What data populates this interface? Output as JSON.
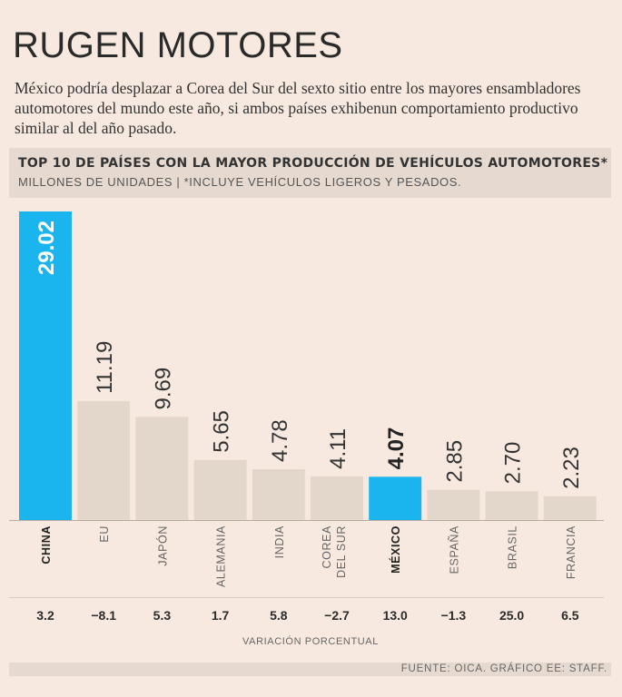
{
  "header": {
    "title": "RUGEN MOTORES",
    "subtitle": "México podría desplazar a Corea del Sur del sexto sitio entre los mayores ensambladores automotores del mundo este año, si ambos países exhibenun comportamiento productivo similar al del año pasado."
  },
  "chart_data": {
    "type": "bar",
    "title": "TOP 10 DE PAÍSES CON LA MAYOR PRODUCCIÓN DE VEHÍCULOS AUTOMOTORES*",
    "subtitle": "MILLONES DE UNIDADES | *INCLUYE VEHÍCULOS LIGEROS Y PESADOS.",
    "categories": [
      "CHINA",
      "EU",
      "JAPÓN",
      "ALEMANIA",
      "INDIA",
      "COREA DEL SUR",
      "MÉXICO",
      "ESPAÑA",
      "BRASIL",
      "FRANCIA"
    ],
    "values": [
      29.02,
      11.19,
      9.69,
      5.65,
      4.78,
      4.11,
      4.07,
      2.85,
      2.7,
      2.23
    ],
    "value_labels": [
      "29.02",
      "11.19",
      "9.69",
      "5.65",
      "4.78",
      "4.11",
      "4.07",
      "2.85",
      "2.70",
      "2.23"
    ],
    "category_labels": [
      [
        "CHINA"
      ],
      [
        "EU"
      ],
      [
        "JAPÓN"
      ],
      [
        "ALEMANIA"
      ],
      [
        "INDIA"
      ],
      [
        "COREA",
        "DEL SUR"
      ],
      [
        "MÉXICO"
      ],
      [
        "ESPAÑA"
      ],
      [
        "BRASIL"
      ],
      [
        "FRANCIA"
      ]
    ],
    "highlight": [
      "CHINA",
      "MÉXICO"
    ],
    "variation_label": "VARIACIÓN PORCENTUAL",
    "variation": [
      "3.2",
      "−8.1",
      "5.3",
      "1.7",
      "5.8",
      "−2.7",
      "13.0",
      "−1.3",
      "25.0",
      "6.5"
    ],
    "ylim": [
      0,
      29.02
    ],
    "colors": {
      "highlight": "#1ab4ef",
      "bar": "#e3d6cb",
      "text": "#333333",
      "label": "#666666"
    }
  },
  "footer": {
    "source": "FUENTE: OICA. GRÁFICO EE: STAFF."
  }
}
